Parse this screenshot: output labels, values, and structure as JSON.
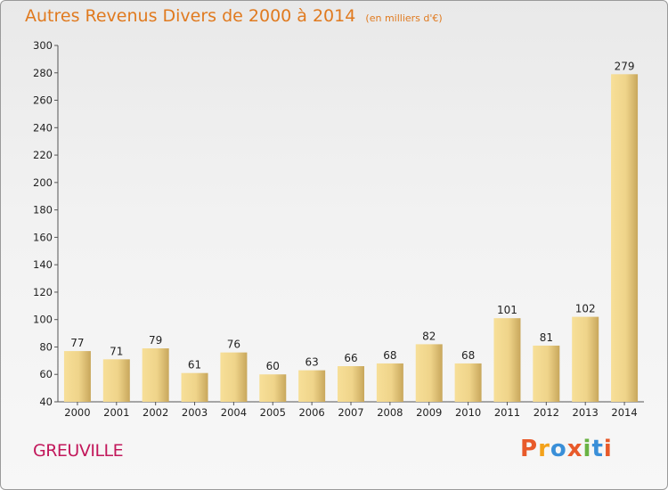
{
  "header": {
    "title": "Autres Revenus Divers de 2000 à 2014",
    "subtitle": "(en milliers d'€)"
  },
  "footer": {
    "town": "GREUVILLE",
    "logo_text": "Proxiti"
  },
  "colors": {
    "title": "#e07a1f",
    "town": "#c2185b",
    "bar_light": "#f7df98",
    "bar_dark": "#c8a75c",
    "logo": [
      "#e85a2a",
      "#f3a21b",
      "#3a8fd8",
      "#e85a2a",
      "#6ab344",
      "#3a8fd8",
      "#e85a2a"
    ]
  },
  "chart_data": {
    "type": "bar",
    "title": "Autres Revenus Divers de 2000 à 2014",
    "subtitle": "(en milliers d'€)",
    "categories": [
      "2000",
      "2001",
      "2002",
      "2003",
      "2004",
      "2005",
      "2006",
      "2007",
      "2008",
      "2009",
      "2010",
      "2011",
      "2012",
      "2013",
      "2014"
    ],
    "values": [
      77,
      71,
      79,
      61,
      76,
      60,
      63,
      66,
      68,
      82,
      68,
      101,
      81,
      102,
      279
    ],
    "ylim": [
      40,
      300
    ],
    "yticks": [
      40,
      60,
      80,
      100,
      120,
      140,
      160,
      180,
      200,
      220,
      240,
      260,
      280,
      300
    ],
    "grid": false,
    "data_labels": true
  }
}
